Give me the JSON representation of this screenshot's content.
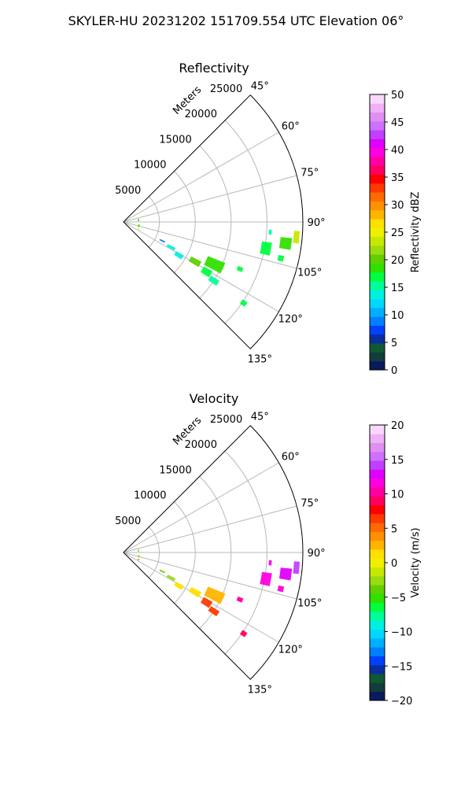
{
  "figure": {
    "suptitle": "SKYLER-HU  20231202  151709.554 UTC Elevation 06°"
  },
  "chart_data": [
    {
      "type": "heatmap",
      "subtype": "polar-sector",
      "title": "Reflectivity",
      "r_label": "Meters",
      "r_ticks": [
        5000,
        10000,
        15000,
        20000,
        25000
      ],
      "r_max": 25000,
      "theta_ticks": [
        "45°",
        "60°",
        "75°",
        "90°",
        "105°",
        "120°",
        "135°"
      ],
      "theta_range": [
        45,
        135
      ],
      "colorbar": {
        "label": "Reflectivity dBZ",
        "ticks": [
          "0",
          "5",
          "10",
          "15",
          "20",
          "25",
          "30",
          "35",
          "40",
          "45",
          "50"
        ],
        "range": [
          0,
          50
        ],
        "colors": [
          "#0a1a5c",
          "#123d3a",
          "#0f5a33",
          "#0a2e9e",
          "#0040ff",
          "#0080ff",
          "#00b0ff",
          "#00d8ff",
          "#00f0e0",
          "#00ff9a",
          "#00ff40",
          "#30e000",
          "#60d000",
          "#9adc10",
          "#c8e800",
          "#eef000",
          "#ffe000",
          "#ffb400",
          "#ff9000",
          "#ff6a00",
          "#ff3a00",
          "#ff0000",
          "#ff0060",
          "#ff00a0",
          "#ff00e0",
          "#e000ff",
          "#c040ff",
          "#d070ff",
          "#e090f0",
          "#f0b0f8",
          "#f8d8fc"
        ]
      },
      "cells": [
        {
          "az": 100.5,
          "r": 20200,
          "dr": 1400,
          "da": 5,
          "value": 17
        },
        {
          "az": 97.5,
          "r": 22800,
          "dr": 1600,
          "da": 4,
          "value": 19
        },
        {
          "az": 95.0,
          "r": 24200,
          "dr": 800,
          "da": 4,
          "value": 23
        },
        {
          "az": 94.0,
          "r": 20500,
          "dr": 400,
          "da": 2,
          "value": 16
        },
        {
          "az": 103.0,
          "r": 22500,
          "dr": 800,
          "da": 2,
          "value": 17
        },
        {
          "az": 115.0,
          "r": 14000,
          "dr": 2600,
          "da": 6,
          "value": 18
        },
        {
          "az": 119.0,
          "r": 11400,
          "dr": 1600,
          "da": 4,
          "value": 20
        },
        {
          "az": 121.0,
          "r": 13500,
          "dr": 1400,
          "da": 4,
          "value": 17
        },
        {
          "az": 123.0,
          "r": 15000,
          "dr": 1400,
          "da": 3,
          "value": 16
        },
        {
          "az": 121.0,
          "r": 9000,
          "dr": 1200,
          "da": 4,
          "value": 14
        },
        {
          "az": 118.0,
          "r": 7500,
          "dr": 1200,
          "da": 3,
          "value": 13
        },
        {
          "az": 116.0,
          "r": 6000,
          "dr": 800,
          "da": 2,
          "value": 9
        },
        {
          "az": 112.0,
          "r": 17500,
          "dr": 800,
          "da": 2,
          "value": 17
        },
        {
          "az": 124.0,
          "r": 20200,
          "dr": 800,
          "da": 2,
          "value": 17
        },
        {
          "az": 115.5,
          "r": 2300,
          "dr": 300,
          "da": 3,
          "value": 24
        },
        {
          "az": 104.0,
          "r": 2200,
          "dr": 200,
          "da": 10,
          "value": 19
        },
        {
          "az": 83.0,
          "r": 2100,
          "dr": 200,
          "da": 8,
          "value": 18
        }
      ]
    },
    {
      "type": "heatmap",
      "subtype": "polar-sector",
      "title": "Velocity",
      "r_label": "Meters",
      "r_ticks": [
        5000,
        10000,
        15000,
        20000,
        25000
      ],
      "r_max": 25000,
      "theta_ticks": [
        "45°",
        "60°",
        "75°",
        "90°",
        "105°",
        "120°",
        "135°"
      ],
      "theta_range": [
        45,
        135
      ],
      "colorbar": {
        "label": "Velocity (m/s)",
        "ticks": [
          "−20",
          "−15",
          "−10",
          "−5",
          "0",
          "5",
          "10",
          "15",
          "20"
        ],
        "range": [
          -20,
          20
        ],
        "colors": [
          "#0a1a5c",
          "#123d3a",
          "#0f5a33",
          "#0a2e9e",
          "#0040ff",
          "#0080ff",
          "#00b0ff",
          "#00d8ff",
          "#00f0e0",
          "#00ff9a",
          "#00ff40",
          "#30e000",
          "#60d000",
          "#9adc10",
          "#c8e800",
          "#eef000",
          "#ffe000",
          "#ffb400",
          "#ff9000",
          "#ff6a00",
          "#ff3a00",
          "#ff0000",
          "#ff0060",
          "#ff00a0",
          "#ff00e0",
          "#e000ff",
          "#c040ff",
          "#d070ff",
          "#e090f0",
          "#f0b0f8",
          "#f8d8fc"
        ]
      },
      "cells": [
        {
          "az": 100.5,
          "r": 20200,
          "dr": 1400,
          "da": 5,
          "value": 11
        },
        {
          "az": 97.5,
          "r": 22800,
          "dr": 1600,
          "da": 4,
          "value": 13
        },
        {
          "az": 95.0,
          "r": 24200,
          "dr": 800,
          "da": 4,
          "value": 14
        },
        {
          "az": 94.0,
          "r": 20500,
          "dr": 400,
          "da": 2,
          "value": 12
        },
        {
          "az": 103.0,
          "r": 22500,
          "dr": 800,
          "da": 2,
          "value": 12
        },
        {
          "az": 115.0,
          "r": 14000,
          "dr": 2600,
          "da": 6,
          "value": 2
        },
        {
          "az": 119.0,
          "r": 11400,
          "dr": 1600,
          "da": 4,
          "value": 1
        },
        {
          "az": 121.0,
          "r": 13500,
          "dr": 1400,
          "da": 4,
          "value": 7
        },
        {
          "az": 123.0,
          "r": 15000,
          "dr": 1400,
          "da": 3,
          "value": 7
        },
        {
          "az": 121.0,
          "r": 9000,
          "dr": 1200,
          "da": 4,
          "value": 1
        },
        {
          "az": 118.0,
          "r": 7500,
          "dr": 1200,
          "da": 3,
          "value": -2
        },
        {
          "az": 116.0,
          "r": 6000,
          "dr": 800,
          "da": 2,
          "value": -4
        },
        {
          "az": 112.0,
          "r": 17500,
          "dr": 800,
          "da": 2,
          "value": 10
        },
        {
          "az": 124.0,
          "r": 20200,
          "dr": 800,
          "da": 2,
          "value": 9
        },
        {
          "az": 115.5,
          "r": 2300,
          "dr": 300,
          "da": 3,
          "value": 7
        },
        {
          "az": 104.0,
          "r": 2200,
          "dr": 200,
          "da": 10,
          "value": -3
        },
        {
          "az": 83.0,
          "r": 2100,
          "dr": 200,
          "da": 8,
          "value": -3
        }
      ]
    }
  ]
}
